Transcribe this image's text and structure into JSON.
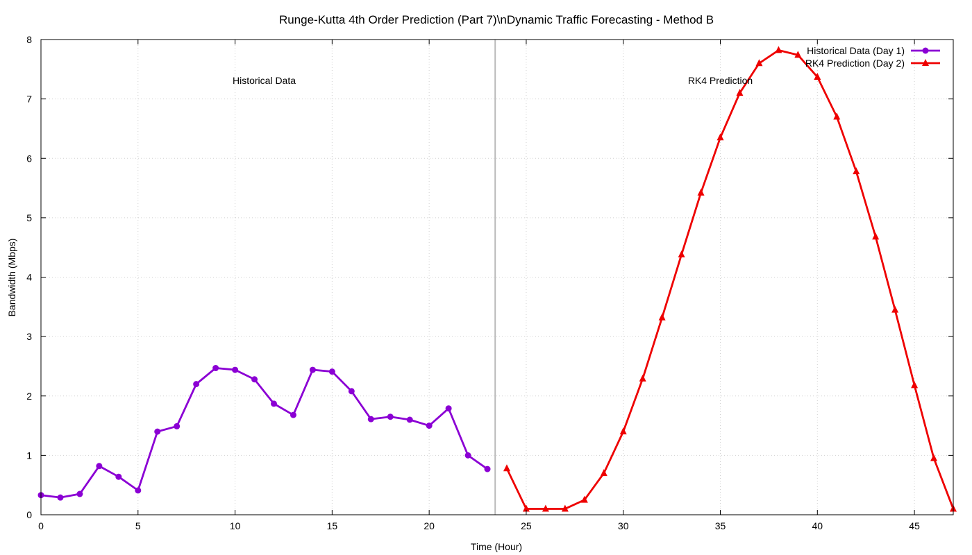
{
  "chart_data": {
    "type": "line",
    "title": "Runge-Kutta 4th Order Prediction (Part 7)\\nDynamic Traffic Forecasting - Method B",
    "xlabel": "Time (Hour)",
    "ylabel": "Bandwidth (Mbps)",
    "xlim": [
      0,
      47
    ],
    "ylim": [
      0,
      8
    ],
    "xticks": [
      0,
      5,
      10,
      15,
      20,
      25,
      30,
      35,
      40,
      45
    ],
    "yticks": [
      0,
      1,
      2,
      3,
      4,
      5,
      6,
      7,
      8
    ],
    "grid": true,
    "legend_position": "top-right",
    "divider_x": 23.4,
    "annotations": [
      {
        "text": "Historical Data",
        "x": 11.5,
        "y": 7.25
      },
      {
        "text": "RK4 Prediction",
        "x": 35,
        "y": 7.25
      }
    ],
    "series": [
      {
        "name": "Historical Data (Day 1)",
        "color": "#8b00d4",
        "marker": "circle",
        "x": [
          0,
          1,
          2,
          3,
          4,
          5,
          6,
          7,
          8,
          9,
          10,
          11,
          12,
          13,
          14,
          15,
          16,
          17,
          18,
          19,
          20,
          21,
          22,
          23
        ],
        "values": [
          0.33,
          0.29,
          0.35,
          0.82,
          0.64,
          0.41,
          1.4,
          1.49,
          2.2,
          2.47,
          2.44,
          2.28,
          1.87,
          1.68,
          2.44,
          2.41,
          2.08,
          1.61,
          1.65,
          1.6,
          1.5,
          1.79,
          1.0,
          0.77
        ]
      },
      {
        "name": "RK4 Prediction (Day 2)",
        "color": "#ee0000",
        "marker": "triangle",
        "x": [
          24,
          25,
          26,
          27,
          28,
          29,
          30,
          31,
          32,
          33,
          34,
          35,
          36,
          37,
          38,
          39,
          40,
          41,
          42,
          43,
          44,
          45,
          46,
          47
        ],
        "values": [
          0.78,
          0.1,
          0.1,
          0.1,
          0.25,
          0.7,
          1.4,
          2.29,
          3.32,
          4.38,
          5.42,
          6.35,
          7.1,
          7.6,
          7.82,
          7.74,
          7.37,
          6.7,
          5.78,
          4.68,
          3.45,
          2.18,
          0.95,
          0.1
        ]
      }
    ]
  }
}
